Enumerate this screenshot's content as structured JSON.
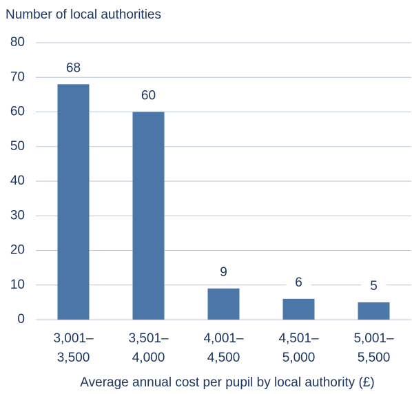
{
  "chart_data": {
    "type": "bar",
    "title": "Number of local authorities",
    "x_label": "Average annual cost per pupil by local authority (£)",
    "categories": [
      [
        "3,001–",
        "3,500"
      ],
      [
        "3,501–",
        "4,000"
      ],
      [
        "4,001–",
        "4,500"
      ],
      [
        "4,501–",
        "5,000"
      ],
      [
        "5,001–",
        "5,500"
      ]
    ],
    "values": [
      68,
      60,
      9,
      6,
      5
    ],
    "color": "#4a76a8",
    "ylim": [
      0,
      80
    ],
    "yticks": [
      0,
      10,
      20,
      30,
      40,
      50,
      60,
      70,
      80
    ],
    "grid": true
  }
}
